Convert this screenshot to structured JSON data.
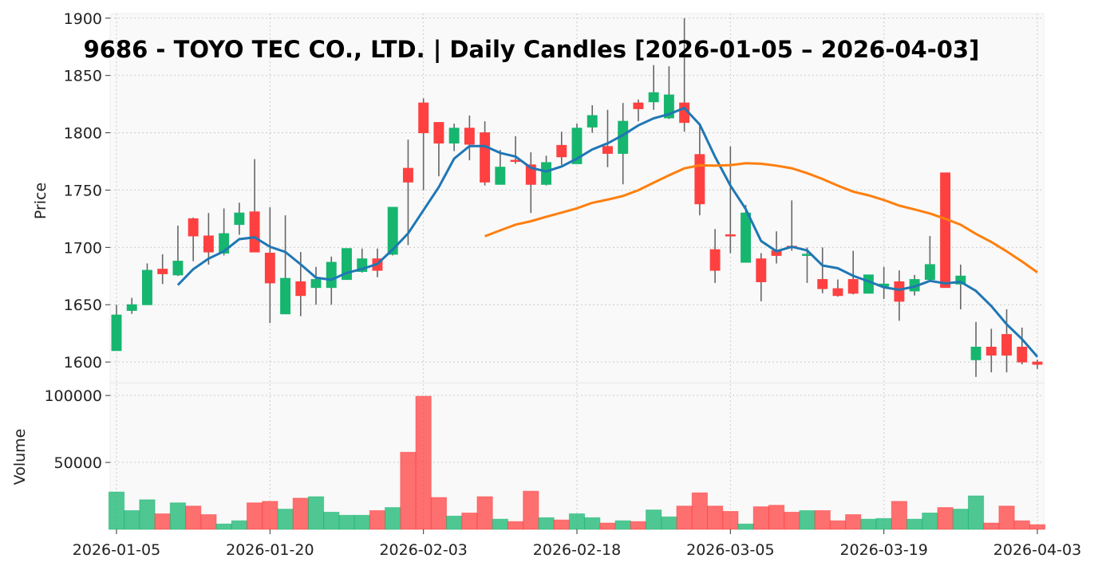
{
  "chart_data": {
    "type": "candlestick",
    "title": "9686 - TOYO TEC CO., LTD. | Daily Candles [2026-01-05 – 2026-04-03]",
    "price_ylabel": "Price",
    "volume_ylabel": "Volume",
    "price_ylim": [
      1582,
      1904
    ],
    "volume_ylim": [
      0,
      109000
    ],
    "price_ticks": [
      1600,
      1650,
      1700,
      1750,
      1800,
      1850,
      1900
    ],
    "volume_ticks": [
      50000,
      100000
    ],
    "x_tick_labels": [
      "2026-01-05",
      "2026-01-20",
      "2026-02-03",
      "2026-02-18",
      "2026-03-05",
      "2026-03-19",
      "2026-04-03"
    ],
    "grid": true,
    "colors": {
      "up": "#16b66f",
      "down": "#ff4040",
      "ma5": "#1f77b4",
      "ma25": "#ff7f0e",
      "wick": "#666666",
      "bg": "#f9f9f9"
    },
    "ma_periods": [
      5,
      25
    ],
    "dates": [
      "2026-01-05",
      "2026-01-06",
      "2026-01-07",
      "2026-01-08",
      "2026-01-09",
      "2026-01-13",
      "2026-01-14",
      "2026-01-15",
      "2026-01-16",
      "2026-01-19",
      "2026-01-20",
      "2026-01-21",
      "2026-01-22",
      "2026-01-23",
      "2026-01-26",
      "2026-01-27",
      "2026-01-28",
      "2026-01-29",
      "2026-01-30",
      "2026-02-02",
      "2026-02-03",
      "2026-02-04",
      "2026-02-05",
      "2026-02-06",
      "2026-02-09",
      "2026-02-10",
      "2026-02-12",
      "2026-02-13",
      "2026-02-16",
      "2026-02-17",
      "2026-02-18",
      "2026-02-19",
      "2026-02-20",
      "2026-02-24",
      "2026-02-25",
      "2026-02-26",
      "2026-02-27",
      "2026-03-02",
      "2026-03-03",
      "2026-03-04",
      "2026-03-05",
      "2026-03-06",
      "2026-03-09",
      "2026-03-10",
      "2026-03-11",
      "2026-03-12",
      "2026-03-13",
      "2026-03-16",
      "2026-03-17",
      "2026-03-18",
      "2026-03-19",
      "2026-03-23",
      "2026-03-24",
      "2026-03-25",
      "2026-03-26",
      "2026-03-27",
      "2026-03-30",
      "2026-03-31",
      "2026-04-01",
      "2026-04-02",
      "2026-04-03"
    ],
    "ohlc": [
      [
        1610,
        1650,
        1610,
        1641
      ],
      [
        1645,
        1656,
        1642,
        1650
      ],
      [
        1650,
        1686,
        1650,
        1680
      ],
      [
        1681,
        1694,
        1668,
        1677
      ],
      [
        1676,
        1719,
        1675,
        1688
      ],
      [
        1725,
        1726,
        1688,
        1710
      ],
      [
        1710,
        1730,
        1685,
        1696
      ],
      [
        1695,
        1734,
        1693,
        1712
      ],
      [
        1720,
        1739,
        1711,
        1730
      ],
      [
        1731,
        1777,
        1696,
        1696
      ],
      [
        1695,
        1735,
        1634,
        1669
      ],
      [
        1642,
        1728,
        1642,
        1673
      ],
      [
        1670,
        1696,
        1640,
        1658
      ],
      [
        1665,
        1683,
        1650,
        1672
      ],
      [
        1665,
        1692,
        1650,
        1687
      ],
      [
        1672,
        1699,
        1672,
        1699
      ],
      [
        1679,
        1699,
        1678,
        1690
      ],
      [
        1690,
        1699,
        1674,
        1680
      ],
      [
        1694,
        1735,
        1693,
        1735
      ],
      [
        1769,
        1794,
        1702,
        1757
      ],
      [
        1826,
        1830,
        1750,
        1800
      ],
      [
        1809,
        1809,
        1762,
        1791
      ],
      [
        1791,
        1808,
        1784,
        1804
      ],
      [
        1804,
        1815,
        1776,
        1790
      ],
      [
        1800,
        1810,
        1754,
        1757
      ],
      [
        1755,
        1785,
        1755,
        1770
      ],
      [
        1776,
        1797,
        1773,
        1775
      ],
      [
        1772,
        1783,
        1730,
        1755
      ],
      [
        1755,
        1780,
        1754,
        1774
      ],
      [
        1789,
        1801,
        1772,
        1779
      ],
      [
        1773,
        1808,
        1773,
        1804
      ],
      [
        1805,
        1824,
        1800,
        1815
      ],
      [
        1788,
        1820,
        1770,
        1782
      ],
      [
        1782,
        1826,
        1755,
        1810
      ],
      [
        1826,
        1829,
        1810,
        1821
      ],
      [
        1827,
        1859,
        1820,
        1835
      ],
      [
        1813,
        1858,
        1812,
        1833
      ],
      [
        1826,
        1900,
        1801,
        1809
      ],
      [
        1781,
        1808,
        1728,
        1738
      ],
      [
        1698,
        1716,
        1669,
        1680
      ],
      [
        1711,
        1788,
        1695,
        1710
      ],
      [
        1687,
        1737,
        1687,
        1730
      ],
      [
        1690,
        1695,
        1653,
        1670
      ],
      [
        1697,
        1714,
        1686,
        1693
      ],
      [
        1701,
        1741,
        1697,
        1700
      ],
      [
        1693,
        1700,
        1669,
        1694
      ],
      [
        1672,
        1700,
        1660,
        1664
      ],
      [
        1664,
        1672,
        1657,
        1658
      ],
      [
        1672,
        1697,
        1659,
        1660
      ],
      [
        1660,
        1676,
        1660,
        1676
      ],
      [
        1666,
        1683,
        1655,
        1668
      ],
      [
        1670,
        1680,
        1636,
        1653
      ],
      [
        1662,
        1676,
        1658,
        1672
      ],
      [
        1672,
        1710,
        1672,
        1685
      ],
      [
        1765,
        1765,
        1665,
        1665
      ],
      [
        1668,
        1685,
        1646,
        1675
      ],
      [
        1602,
        1635,
        1587,
        1613
      ],
      [
        1613,
        1629,
        1591,
        1606
      ],
      [
        1624,
        1646,
        1591,
        1606
      ],
      [
        1613,
        1630,
        1598,
        1600
      ],
      [
        1600,
        1602,
        1594,
        1598
      ]
    ],
    "volume": [
      27900,
      14000,
      22100,
      11600,
      19800,
      17400,
      11000,
      4000,
      6400,
      19800,
      20900,
      15100,
      23300,
      24400,
      12800,
      10500,
      10500,
      14000,
      16300,
      57600,
      99400,
      23800,
      9900,
      12200,
      24400,
      7600,
      5800,
      28500,
      8700,
      7000,
      11600,
      8700,
      4700,
      6400,
      5800,
      14500,
      9300,
      17400,
      27300,
      17400,
      13400,
      4000,
      16900,
      18000,
      12800,
      14000,
      14000,
      6400,
      11000,
      7600,
      8100,
      20900,
      7600,
      12200,
      16300,
      15100,
      25000,
      4700,
      17400,
      6400,
      3500
    ]
  }
}
